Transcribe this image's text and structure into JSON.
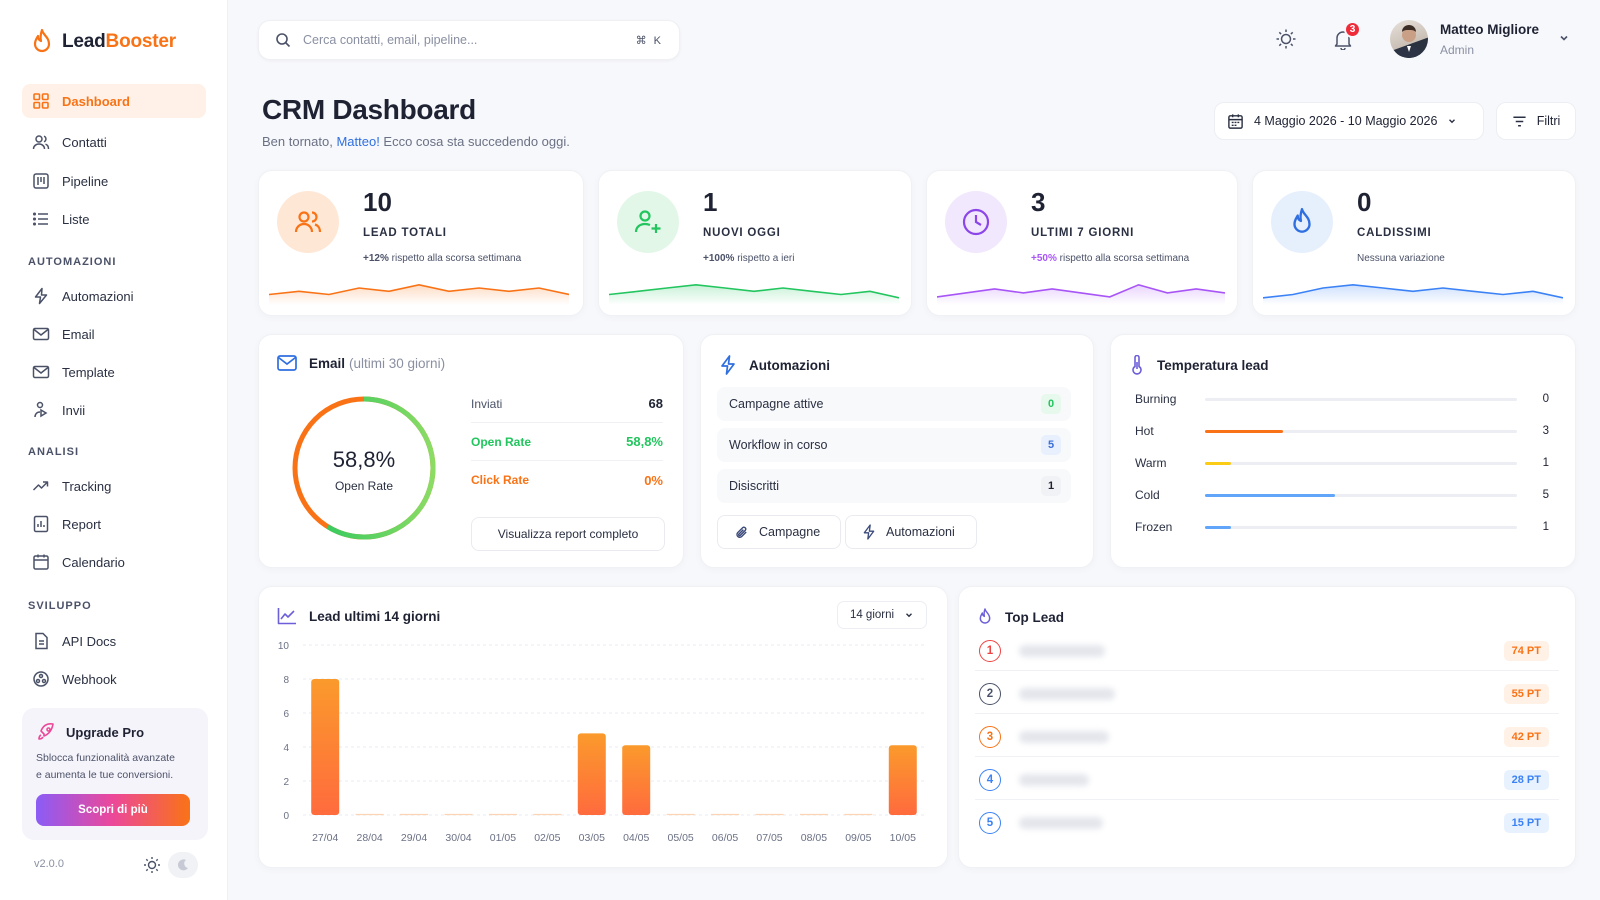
{
  "app": {
    "logo_lead": "Lead",
    "logo_booster": "Booster",
    "version": "v2.0.0"
  },
  "sidebar": {
    "items": [
      {
        "label": "Dashboard",
        "icon": "grid-icon"
      },
      {
        "label": "Contatti",
        "icon": "users-icon"
      },
      {
        "label": "Pipeline",
        "icon": "pipeline-icon"
      },
      {
        "label": "Liste",
        "icon": "list-icon"
      }
    ],
    "sections": [
      {
        "title": "AUTOMAZIONI",
        "items": [
          {
            "label": "Automazioni",
            "icon": "bolt-icon"
          },
          {
            "label": "Email",
            "icon": "mail-icon"
          },
          {
            "label": "Template",
            "icon": "template-icon"
          },
          {
            "label": "Invii",
            "icon": "send-icon"
          }
        ]
      },
      {
        "title": "ANALISI",
        "items": [
          {
            "label": "Tracking",
            "icon": "trend-icon"
          },
          {
            "label": "Report",
            "icon": "report-icon"
          },
          {
            "label": "Calendario",
            "icon": "calendar-icon"
          }
        ]
      },
      {
        "title": "SVILUPPO",
        "items": [
          {
            "label": "API Docs",
            "icon": "doc-icon"
          },
          {
            "label": "Webhook",
            "icon": "webhook-icon"
          }
        ]
      }
    ],
    "upgrade": {
      "title": "Upgrade Pro",
      "text_line1": "Sblocca funzionalità avanzate",
      "text_line2": "e aumenta le tue conversioni.",
      "button": "Scopri di più"
    }
  },
  "topbar": {
    "search_placeholder": "Cerca contatti, email, pipeline...",
    "shortcut": "⌘ K",
    "notifications": "3",
    "user_name": "Matteo Migliore",
    "user_role": "Admin"
  },
  "header": {
    "title": "CRM Dashboard",
    "subtitle_pre": "Ben tornato, ",
    "subtitle_name": "Matteo!",
    "subtitle_post": " Ecco cosa sta succedendo oggi.",
    "date_range": "4 Maggio 2026 - 10 Maggio 2026",
    "filter_label": "Filtri"
  },
  "stats": [
    {
      "value": "10",
      "label": "LEAD TOTALI",
      "delta": "+12%",
      "note": "rispetto alla scorsa settimana",
      "color": "#f97316",
      "trend": [
        2,
        3,
        2,
        4,
        3,
        5,
        3,
        4,
        3,
        4,
        2
      ]
    },
    {
      "value": "1",
      "label": "NUOVI OGGI",
      "delta": "+100%",
      "note": "rispetto a ieri",
      "color": "#22c55e",
      "trend": [
        2,
        3,
        4,
        5,
        4,
        3,
        4,
        3,
        2,
        3,
        1
      ]
    },
    {
      "value": "3",
      "label": "ULTIMI 7 GIORNI",
      "delta": "+50%",
      "note": "rispetto alla scorsa settimana",
      "color": "#a855f7",
      "trend": [
        1,
        2,
        3,
        2,
        3,
        2,
        1,
        4,
        2,
        3,
        2
      ]
    },
    {
      "value": "0",
      "label": "CALDISSIMI",
      "delta": "",
      "note": "Nessuna variazione",
      "color": "#3b82f6",
      "trend": [
        1,
        2,
        4,
        5,
        4,
        3,
        4,
        3,
        2,
        3,
        1
      ]
    }
  ],
  "email": {
    "title": "Email",
    "subtitle": "(ultimi 30 giorni)",
    "open_rate": "58,8%",
    "open_rate_fraction": 0.588,
    "open_rate_label": "Open Rate",
    "rows": [
      {
        "label": "Inviati",
        "value": "68",
        "color": "#4b5268",
        "val_color": "#1e2233"
      },
      {
        "label": "Open Rate",
        "value": "58,8%",
        "color": "#22c55e",
        "val_color": "#22c55e"
      },
      {
        "label": "Click Rate",
        "value": "0%",
        "color": "#f97316",
        "val_color": "#f97316"
      }
    ],
    "report_button": "Visualizza report completo"
  },
  "automazioni": {
    "title": "Automazioni",
    "rows": [
      {
        "label": "Campagne attive",
        "value": "0",
        "bg": "#e7f8ec",
        "fg": "#22c55e"
      },
      {
        "label": "Workflow in corso",
        "value": "5",
        "bg": "#e8f0fe",
        "fg": "#3b6fd8"
      },
      {
        "label": "Disiscritti",
        "value": "1",
        "bg": "#f1f2f5",
        "fg": "#1e2233"
      }
    ],
    "btn_campagne": "Campagne",
    "btn_automazioni": "Automazioni"
  },
  "temperatura": {
    "title": "Temperatura lead",
    "max": 12,
    "rows": [
      {
        "label": "Burning",
        "value": "0",
        "count": 0,
        "color": "#ef4444"
      },
      {
        "label": "Hot",
        "value": "3",
        "count": 3,
        "color": "#f97316"
      },
      {
        "label": "Warm",
        "value": "1",
        "count": 1,
        "color": "#facc15"
      },
      {
        "label": "Cold",
        "value": "5",
        "count": 5,
        "color": "#60a5fa"
      },
      {
        "label": "Frozen",
        "value": "1",
        "count": 1,
        "color": "#60a5fa"
      }
    ]
  },
  "lead_chart": {
    "title": "Lead ultimi 14 giorni",
    "range": "14 giorni"
  },
  "chart_data": {
    "type": "bar",
    "categories": [
      "27/04",
      "28/04",
      "29/04",
      "30/04",
      "01/05",
      "02/05",
      "03/05",
      "04/05",
      "05/05",
      "06/05",
      "07/05",
      "08/05",
      "09/05",
      "10/05"
    ],
    "values": [
      8,
      0,
      0,
      0,
      0,
      0,
      4.8,
      4.1,
      0,
      0,
      0,
      0,
      0,
      4.1
    ],
    "yticks": [
      "0",
      "2",
      "4",
      "6",
      "8",
      "10"
    ],
    "ylim": [
      0,
      10
    ],
    "grid": true
  },
  "top_lead": {
    "title": "Top Lead",
    "rows": [
      {
        "rank": "1",
        "points": "74 PT",
        "color": "#ef4444",
        "pts_bg": "#fff1e6",
        "pts_fg": "#f97316"
      },
      {
        "rank": "2",
        "points": "55 PT",
        "color": "#4b5268",
        "pts_bg": "#fff1e6",
        "pts_fg": "#f97316"
      },
      {
        "rank": "3",
        "points": "42 PT",
        "color": "#f97316",
        "pts_bg": "#fff1e6",
        "pts_fg": "#f97316"
      },
      {
        "rank": "4",
        "points": "28 PT",
        "color": "#3b82f6",
        "pts_bg": "#e8f2fe",
        "pts_fg": "#3b82f6"
      },
      {
        "rank": "5",
        "points": "15 PT",
        "color": "#3b82f6",
        "pts_bg": "#e8f2fe",
        "pts_fg": "#3b82f6"
      }
    ]
  }
}
